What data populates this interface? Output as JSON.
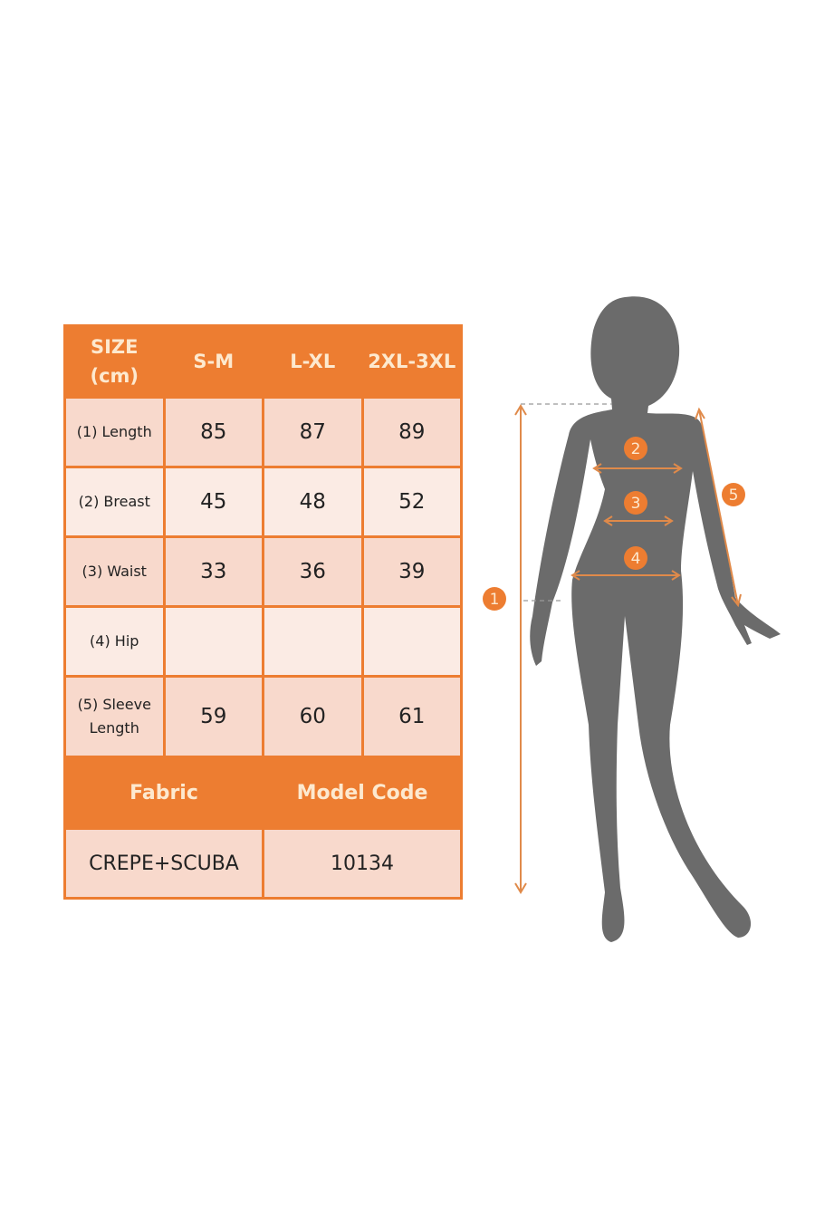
{
  "table": {
    "header": [
      "SIZE (cm)",
      "S-M",
      "L-XL",
      "2XL-3XL"
    ],
    "rows": [
      {
        "label": "(1) Length",
        "values": [
          "85",
          "87",
          "89"
        ]
      },
      {
        "label": "(2) Breast",
        "values": [
          "45",
          "48",
          "52"
        ]
      },
      {
        "label": "(3) Waist",
        "values": [
          "33",
          "36",
          "39"
        ]
      },
      {
        "label": "(4) Hip",
        "values": [
          "",
          "",
          ""
        ]
      },
      {
        "label": "(5) Sleeve Length",
        "values": [
          "59",
          "60",
          "61"
        ]
      }
    ],
    "fabric_label": "Fabric",
    "model_code_label": "Model Code",
    "fabric_value": "CREPE+SCUBA",
    "model_code_value": "10134"
  },
  "diagram": {
    "markers": [
      "1",
      "2",
      "3",
      "4",
      "5"
    ],
    "colors": {
      "accent": "#ed7d31",
      "silhouette": "#6b6b6b",
      "header_text": "#fde9cf"
    }
  }
}
